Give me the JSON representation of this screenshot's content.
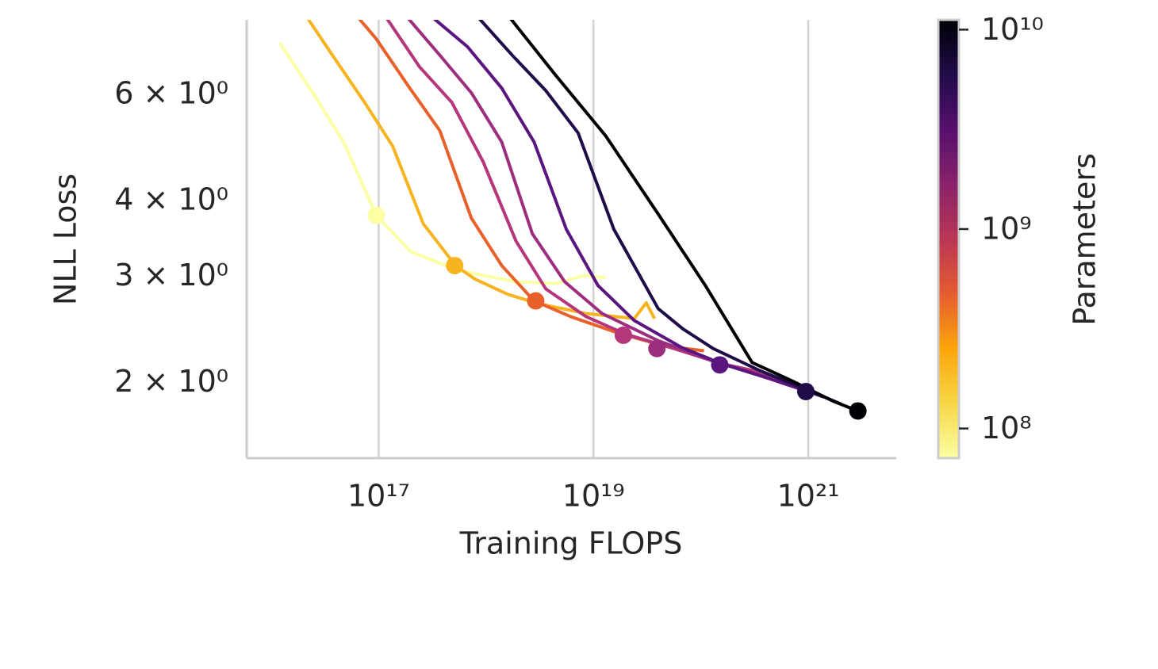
{
  "chart_data": {
    "type": "line",
    "x_label": "Training FLOPS",
    "y_label": "NLL Loss",
    "xscale": "log",
    "yscale": "log",
    "xlim": [
      5900000000000000.0,
      6.6e+21
    ],
    "ylim": [
      1.52,
      8.1
    ],
    "xticks": [
      {
        "value": 1e+17,
        "label": "10¹⁷"
      },
      {
        "value": 1e+19,
        "label": "10¹⁹"
      },
      {
        "value": 1e+21,
        "label": "10²¹"
      }
    ],
    "yticks": [
      {
        "value": 2,
        "label": "2 × 10⁰"
      },
      {
        "value": 3,
        "label": "3 × 10⁰"
      },
      {
        "value": 4,
        "label": "4 × 10⁰"
      },
      {
        "value": 6,
        "label": "6 × 10⁰"
      }
    ],
    "grid": "x",
    "series": [
      {
        "color": "#fcffa4",
        "x": [
          1.2e+16,
          2.5e+16,
          4.8e+16,
          9.5e+16,
          2e+17,
          5.6e+17,
          1.9e+18,
          4.4e+18,
          8e+18,
          1.3e+19
        ],
        "values": [
          7.41,
          6.09,
          5.05,
          3.84,
          3.34,
          3.11,
          2.98,
          2.96,
          3.05,
          3.03
        ],
        "dot": [
          9.5e+16,
          3.84
        ]
      },
      {
        "color": "#f8b320",
        "x": [
          2.2e+16,
          3.7e+16,
          7.4e+16,
          1.35e+17,
          2.6e+17,
          5.2e+17,
          7.9e+17,
          1.6e+18,
          3.1e+18,
          8.5e+18,
          2.4e+19,
          3.1e+19,
          3.7e+19
        ],
        "values": [
          8.13,
          7.08,
          5.91,
          5.0,
          3.72,
          3.17,
          3.01,
          2.84,
          2.74,
          2.64,
          2.59,
          2.75,
          2.59
        ],
        "dot": [
          5.1e+17,
          3.17
        ]
      },
      {
        "color": "#e8602a",
        "x": [
          6.6e+16,
          9.5e+16,
          1.9e+17,
          3.7e+17,
          7.3e+17,
          1.4e+18,
          2.8e+18,
          6.1e+18,
          1.7e+19,
          4.7e+19,
          1.07e+20
        ],
        "values": [
          8.13,
          7.53,
          6.28,
          5.31,
          3.8,
          3.17,
          2.77,
          2.61,
          2.45,
          2.33,
          2.29
        ],
        "dot": [
          2.9e+18,
          2.77
        ]
      },
      {
        "color": "#b5367a",
        "x": [
          1.2e+17,
          2.4e+17,
          4.8e+17,
          9.4e+17,
          1.9e+18,
          3.6e+18,
          8.5e+18,
          2e+19,
          5.6e+19,
          1.56e+20,
          3.6e+20
        ],
        "values": [
          8.13,
          6.77,
          5.91,
          4.71,
          3.48,
          2.9,
          2.61,
          2.44,
          2.31,
          2.18,
          2.11
        ],
        "dot": [
          1.9e+19,
          2.43
        ]
      },
      {
        "color": "#9c2e7f",
        "x": [
          1.9e+17,
          3.7e+17,
          7.3e+17,
          1.4e+18,
          2.7e+18,
          5.4e+18,
          1.2e+19,
          4e+19,
          1.3e+20,
          3.6e+20,
          8.5e+20
        ],
        "values": [
          8.13,
          7.08,
          6.13,
          5.08,
          3.58,
          2.98,
          2.64,
          2.38,
          2.2,
          2.09,
          2.0
        ],
        "dot": [
          3.9e+19,
          2.31
        ]
      },
      {
        "color": "#5a167e",
        "x": [
          3.3e+17,
          6.7e+17,
          1.4e+18,
          2.8e+18,
          5.6e+18,
          1.1e+19,
          2.4e+19,
          6.6e+19,
          1.56e+20,
          4.3e+20,
          1.4e+21
        ],
        "values": [
          8.13,
          7.31,
          6.24,
          5.08,
          3.64,
          2.94,
          2.57,
          2.32,
          2.18,
          2.06,
          1.92
        ],
        "dot": [
          1.5e+20,
          2.17
        ]
      },
      {
        "color": "#1f0c48",
        "x": [
          8.7e+17,
          1.8e+18,
          3.6e+18,
          7.2e+18,
          1.55e+19,
          4e+19,
          6.8e+19,
          1.3e+20,
          3.6e+20,
          1e+21,
          2e+21
        ],
        "values": [
          8.13,
          7.04,
          6.18,
          5.26,
          3.64,
          2.69,
          2.49,
          2.31,
          2.12,
          1.97,
          1.87
        ],
        "dot": [
          9.5e+20,
          1.96
        ]
      },
      {
        "color": "#000004",
        "x": [
          1.7e+18,
          4.4e+18,
          1.3e+19,
          4e+19,
          1.1e+20,
          3e+20,
          7.1e+20,
          1.7e+21,
          2.9e+21
        ],
        "values": [
          8.13,
          6.57,
          5.2,
          3.86,
          2.94,
          2.19,
          2.04,
          1.89,
          1.82
        ],
        "dot": [
          2.9e+21,
          1.82
        ]
      }
    ],
    "colorbar": {
      "label": "Parameters",
      "scale": "log",
      "lim": [
        71000000.0,
        11200000000.0
      ],
      "ticks": [
        {
          "value": 100000000.0,
          "label": "10⁸"
        },
        {
          "value": 1000000000.0,
          "label": "10⁹"
        },
        {
          "value": 10000000000.0,
          "label": "10¹⁰"
        }
      ],
      "colors": [
        "#fcffa4",
        "#f6d746",
        "#fca50a",
        "#e55c30",
        "#ba3655",
        "#89226a",
        "#56106e",
        "#210c4a",
        "#000004"
      ]
    }
  }
}
